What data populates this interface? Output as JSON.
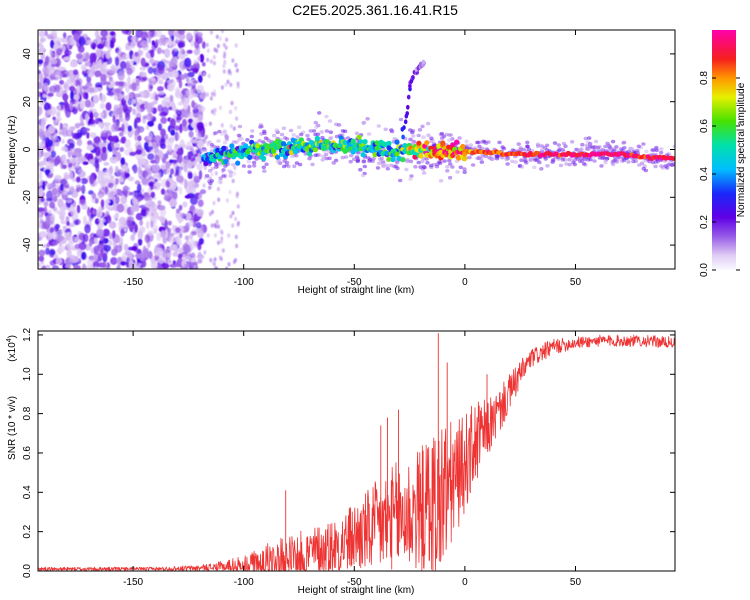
{
  "title": "C2E5.2025.361.16.41.R15",
  "chart_data": [
    {
      "id": "spectrogram",
      "type": "heatmap",
      "xlabel": "Height of straight line (km)",
      "ylabel": "Frequency (Hz)",
      "xlim": [
        -193,
        95
      ],
      "ylim": [
        -50,
        50
      ],
      "xticks": [
        -150,
        -100,
        -50,
        0,
        50
      ],
      "yticks": [
        -40,
        -20,
        0,
        20,
        40
      ],
      "xtick_labels": [
        "-150",
        "-100",
        "-50",
        "0",
        "50"
      ],
      "ytick_labels": [
        "-40",
        "-20",
        "0",
        "20",
        "40"
      ],
      "colorbar": {
        "label": "Normalized spectral amplitude",
        "range": [
          0,
          1
        ],
        "ticks": [
          0.0,
          0.2,
          0.4,
          0.6,
          0.8
        ],
        "tick_labels": [
          "0.0",
          "0.2",
          "0.4",
          "0.6",
          "0.8"
        ]
      },
      "noise_region_x": [
        -193,
        -118
      ],
      "main_track": [
        {
          "x": -118,
          "y": -3,
          "a": 0.35
        },
        {
          "x": -110,
          "y": -2,
          "a": 0.45
        },
        {
          "x": -100,
          "y": -1,
          "a": 0.5
        },
        {
          "x": -90,
          "y": 0,
          "a": 0.55
        },
        {
          "x": -80,
          "y": 1,
          "a": 0.55
        },
        {
          "x": -70,
          "y": 2,
          "a": 0.55
        },
        {
          "x": -60,
          "y": 2,
          "a": 0.5
        },
        {
          "x": -50,
          "y": 1,
          "a": 0.5
        },
        {
          "x": -40,
          "y": 0,
          "a": 0.45
        },
        {
          "x": -30,
          "y": -1,
          "a": 0.5
        },
        {
          "x": -20,
          "y": 0,
          "a": 0.7
        },
        {
          "x": -10,
          "y": 0,
          "a": 0.85
        },
        {
          "x": 0,
          "y": -1,
          "a": 0.8
        },
        {
          "x": 10,
          "y": -1,
          "a": 0.85
        },
        {
          "x": 20,
          "y": -2,
          "a": 0.85
        },
        {
          "x": 30,
          "y": -2,
          "a": 0.9
        },
        {
          "x": 40,
          "y": -2,
          "a": 0.92
        },
        {
          "x": 50,
          "y": -2,
          "a": 0.93
        },
        {
          "x": 60,
          "y": -2,
          "a": 0.95
        },
        {
          "x": 70,
          "y": -2,
          "a": 0.95
        },
        {
          "x": 80,
          "y": -3,
          "a": 0.9
        },
        {
          "x": 95,
          "y": -4,
          "a": 0.95
        }
      ],
      "branch_track": [
        {
          "x": -28,
          "y": 5,
          "a": 0.35
        },
        {
          "x": -27,
          "y": 12,
          "a": 0.3
        },
        {
          "x": -26,
          "y": 17,
          "a": 0.25
        },
        {
          "x": -25,
          "y": 27,
          "a": 0.2
        },
        {
          "x": -22,
          "y": 33,
          "a": 0.15
        },
        {
          "x": -18,
          "y": 37,
          "a": 0.12
        }
      ]
    },
    {
      "id": "snr",
      "type": "line",
      "xlabel": "Height of straight line (km)",
      "ylabel": "SNR (10 * v/v)",
      "scale_label_base": "(x10",
      "scale_label_exp": "4",
      "scale_label_end": ")",
      "xlim": [
        -193,
        95
      ],
      "ylim": [
        0,
        1.22
      ],
      "xticks": [
        -150,
        -100,
        -50,
        0,
        50
      ],
      "yticks": [
        0.0,
        0.2,
        0.4,
        0.6,
        0.8,
        1.0,
        1.2
      ],
      "xtick_labels": [
        "-150",
        "-100",
        "-50",
        "0",
        "50"
      ],
      "ytick_labels": [
        "0.0",
        "0.2",
        "0.4",
        "0.6",
        "0.8",
        "1.0",
        "1.2"
      ],
      "color": "#ee3333",
      "envelope": {
        "x": [
          -193,
          -140,
          -120,
          -110,
          -100,
          -90,
          -80,
          -70,
          -60,
          -50,
          -40,
          -30,
          -20,
          -15,
          -10,
          -5,
          0,
          5,
          10,
          15,
          20,
          25,
          30,
          40,
          50,
          60,
          70,
          80,
          95
        ],
        "base": [
          0.01,
          0.01,
          0.015,
          0.02,
          0.03,
          0.04,
          0.06,
          0.09,
          0.12,
          0.17,
          0.22,
          0.27,
          0.31,
          0.33,
          0.38,
          0.45,
          0.55,
          0.65,
          0.72,
          0.8,
          0.9,
          1.0,
          1.08,
          1.14,
          1.16,
          1.17,
          1.17,
          1.17,
          1.16
        ],
        "amp": [
          0.01,
          0.01,
          0.015,
          0.03,
          0.05,
          0.1,
          0.12,
          0.13,
          0.15,
          0.18,
          0.24,
          0.3,
          0.32,
          0.4,
          0.42,
          0.3,
          0.25,
          0.22,
          0.15,
          0.12,
          0.1,
          0.07,
          0.05,
          0.04,
          0.03,
          0.03,
          0.03,
          0.03,
          0.03
        ]
      },
      "spikes": [
        {
          "x": -81,
          "y": 0.41
        },
        {
          "x": -38,
          "y": 0.74
        },
        {
          "x": -35,
          "y": 0.78
        },
        {
          "x": -30,
          "y": 0.82
        },
        {
          "x": -12,
          "y": 1.21
        },
        {
          "x": -8,
          "y": 1.06
        },
        {
          "x": 10,
          "y": 1.0
        }
      ]
    }
  ]
}
